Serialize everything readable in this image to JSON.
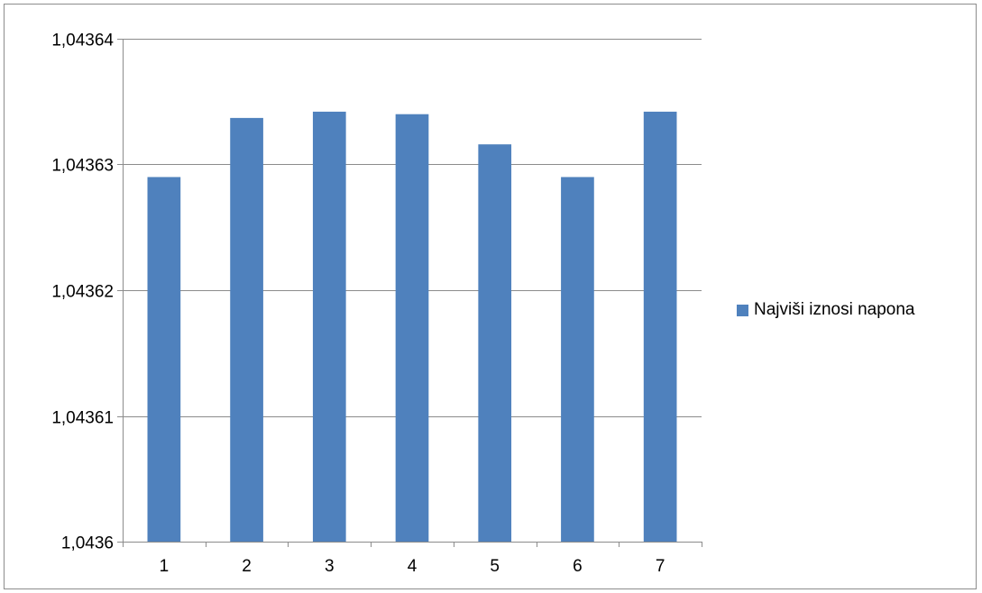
{
  "chart_data": {
    "type": "bar",
    "categories": [
      "1",
      "2",
      "3",
      "4",
      "5",
      "6",
      "7"
    ],
    "series": [
      {
        "name": "Najviši iznosi napona",
        "values": [
          1.043629,
          1.0436337,
          1.0436342,
          1.043634,
          1.0436316,
          1.043629,
          1.0436342
        ],
        "color": "#4f81bd"
      }
    ],
    "ylim": [
      1.0436,
      1.04364
    ],
    "yticks": [
      1.0436,
      1.04361,
      1.04362,
      1.04363,
      1.04364
    ],
    "ytick_labels": [
      "1,0436",
      "1,04361",
      "1,04362",
      "1,04363",
      "1,04364"
    ],
    "grid": "horizontal",
    "legend_position": "right",
    "title": "",
    "xlabel": "",
    "ylabel": ""
  }
}
